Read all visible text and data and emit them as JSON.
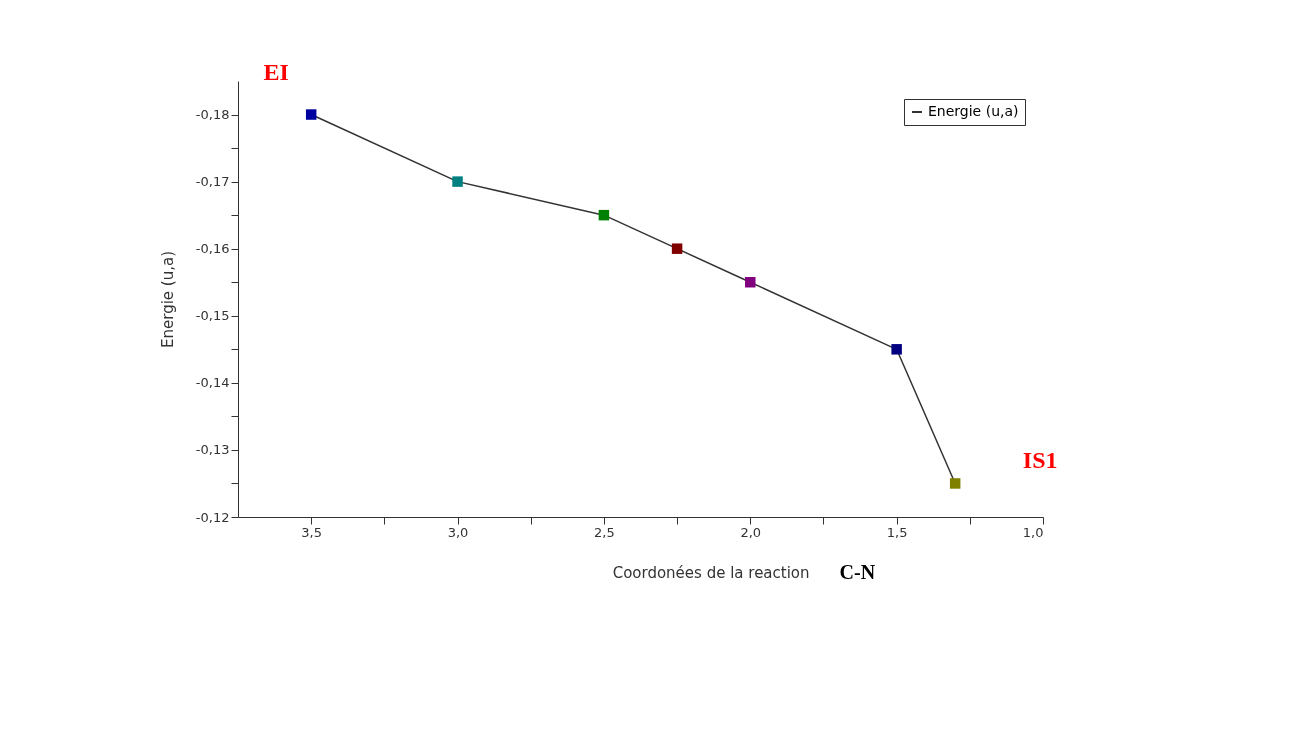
{
  "chart_data": {
    "type": "line",
    "xlabel": "Coordonées de la reaction",
    "ylabel": "Energie (u,a)",
    "x": [
      3.5,
      3.0,
      2.5,
      2.25,
      2.0,
      1.5,
      1.3
    ],
    "series": [
      {
        "name": "Energie (u,a)",
        "color": "#333333",
        "colors": [
          "#0000a0",
          "#008080",
          "#008000",
          "#800000",
          "#800080",
          "#000080",
          "#808000"
        ],
        "values": [
          -0.18,
          -0.17,
          -0.165,
          -0.16,
          -0.155,
          -0.145,
          -0.125
        ]
      }
    ],
    "xlim": [
      3.75,
      1.0
    ],
    "xticks": [
      {
        "value": 3.5,
        "label": "3,5"
      },
      {
        "value": 3.25,
        "label": null
      },
      {
        "value": 3.0,
        "label": "3,0"
      },
      {
        "value": 2.75,
        "label": null
      },
      {
        "value": 2.5,
        "label": "2,5"
      },
      {
        "value": 2.25,
        "label": null
      },
      {
        "value": 2.0,
        "label": "2,0"
      },
      {
        "value": 1.75,
        "label": null
      },
      {
        "value": 1.5,
        "label": "1,5"
      },
      {
        "value": 1.25,
        "label": null
      },
      {
        "value": 1.0,
        "label": "1,0"
      }
    ],
    "ylim": [
      -0.12,
      -0.185
    ],
    "yticks": [
      {
        "value": -0.18,
        "label": "-0,18"
      },
      {
        "value": -0.175,
        "label": null
      },
      {
        "value": -0.17,
        "label": "-0,17"
      },
      {
        "value": -0.165,
        "label": null
      },
      {
        "value": -0.16,
        "label": "-0,16"
      },
      {
        "value": -0.155,
        "label": null
      },
      {
        "value": -0.15,
        "label": "-0,15"
      },
      {
        "value": -0.145,
        "label": null
      },
      {
        "value": -0.14,
        "label": "-0,14"
      },
      {
        "value": -0.135,
        "label": null
      },
      {
        "value": -0.13,
        "label": "-0,13"
      },
      {
        "value": -0.125,
        "label": null
      },
      {
        "value": -0.12,
        "label": "-0,12"
      }
    ],
    "annotations": [
      {
        "text": "EI",
        "x": 3.5,
        "y": -0.18
      },
      {
        "text": "IS1",
        "x": 1.3,
        "y": -0.125
      },
      "C-N"
    ],
    "marker": "square",
    "legend": "top right",
    "grid": false
  }
}
